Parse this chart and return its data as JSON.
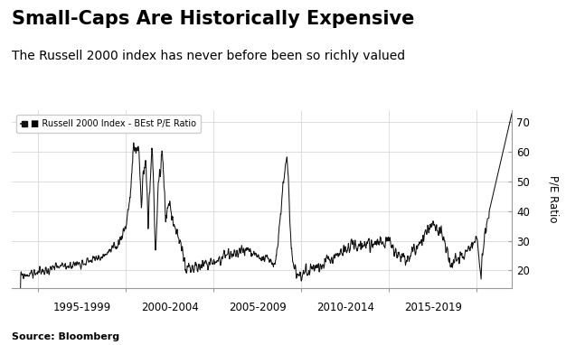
{
  "title": "Small-Caps Are Historically Expensive",
  "subtitle": "The Russell 2000 index has never before been so richly valued",
  "legend_label": "■ Russell 2000 Index - BEst P/E Ratio",
  "ylabel": "P/E Ratio",
  "source": "Source: Bloomberg",
  "xtick_labels": [
    "1995-1999",
    "2000-2004",
    "2005-2009",
    "2010-2014",
    "2015-2019"
  ],
  "xtick_positions": [
    1995,
    2000,
    2005,
    2010,
    2015,
    2020
  ],
  "xtick_centers": [
    1997.5,
    2002.5,
    2007.5,
    2012.5,
    2017.5
  ],
  "ytick_labels": [
    20,
    30,
    40,
    50,
    60,
    70
  ],
  "ylim": [
    14,
    74
  ],
  "xlim": [
    1993.5,
    2022.0
  ],
  "line_color": "#111111",
  "background_color": "#ffffff",
  "title_fontsize": 15,
  "subtitle_fontsize": 10,
  "axis_fontsize": 8.5
}
